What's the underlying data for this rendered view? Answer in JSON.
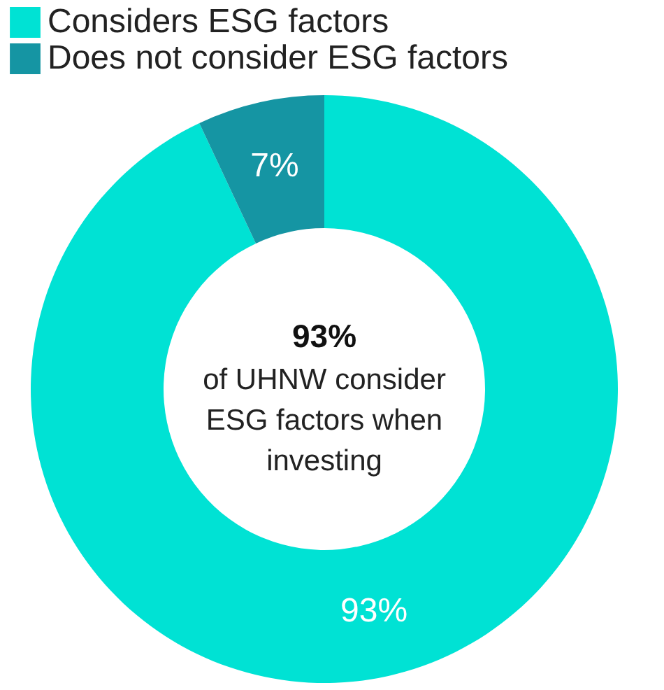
{
  "chart_data": {
    "type": "donut",
    "categories": [
      "Considers ESG factors",
      "Does not consider ESG factors"
    ],
    "values": [
      93,
      7
    ],
    "colors": [
      "#00e2d4",
      "#1595a3"
    ],
    "value_labels": [
      "93%",
      "7%"
    ],
    "legend": "top left",
    "annotations": [
      "93%",
      "of UHNW consider ESG factors when investing"
    ]
  }
}
